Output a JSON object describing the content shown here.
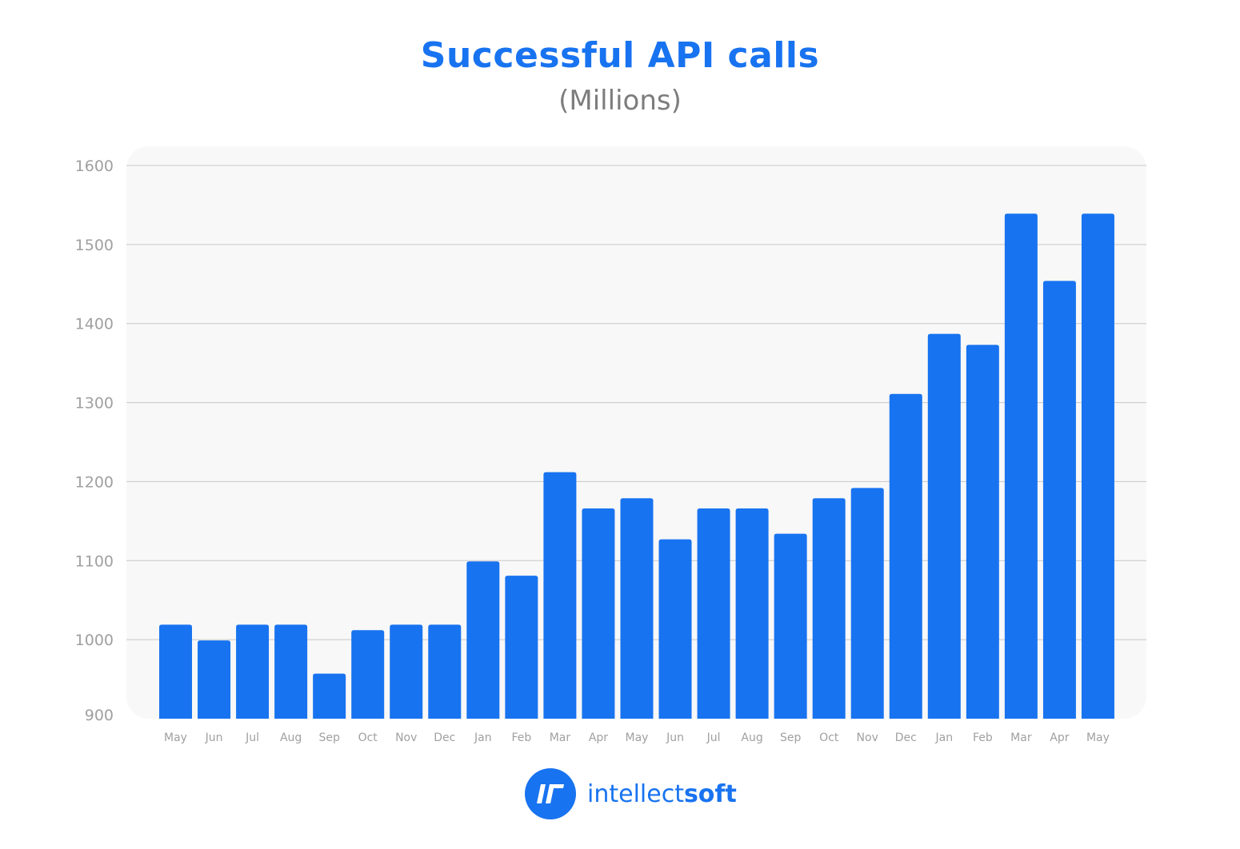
{
  "chart_data": {
    "type": "bar",
    "title": "Successful API calls",
    "subtitle": "(Millions)",
    "xlabel": "",
    "ylabel": "",
    "ylim": [
      900,
      1600
    ],
    "yticks": [
      "900",
      "1000",
      "1100",
      "1200",
      "1300",
      "1400",
      "1500",
      "1600"
    ],
    "grid": true,
    "legend": "none",
    "bar_color": "#1873f0",
    "categories": [
      "May",
      "Jun",
      "Jul",
      "Aug",
      "Sep",
      "Oct",
      "Nov",
      "Dec",
      "Jan",
      "Feb",
      "Mar",
      "Apr",
      "May",
      "Jun",
      "Jul",
      "Aug",
      "Sep",
      "Oct",
      "Nov",
      "Dec",
      "Jan",
      "Feb",
      "Mar",
      "Apr",
      "May"
    ],
    "values": [
      1019,
      999,
      1019,
      1019,
      957,
      1012,
      1019,
      1019,
      1099,
      1081,
      1212,
      1166,
      1179,
      1127,
      1166,
      1166,
      1134,
      1179,
      1192,
      1311,
      1387,
      1373,
      1539,
      1454,
      1539
    ]
  },
  "logo": {
    "text_regular": "intellect",
    "text_bold": "soft",
    "icon": "intellectsoft-logo-icon"
  },
  "colors": {
    "accent": "#1873f0",
    "subtitle": "#7d7d7d",
    "plot_background": "#f8f8f8",
    "grid": "#c8c8c8",
    "tick_label": "#a0a0a0"
  }
}
